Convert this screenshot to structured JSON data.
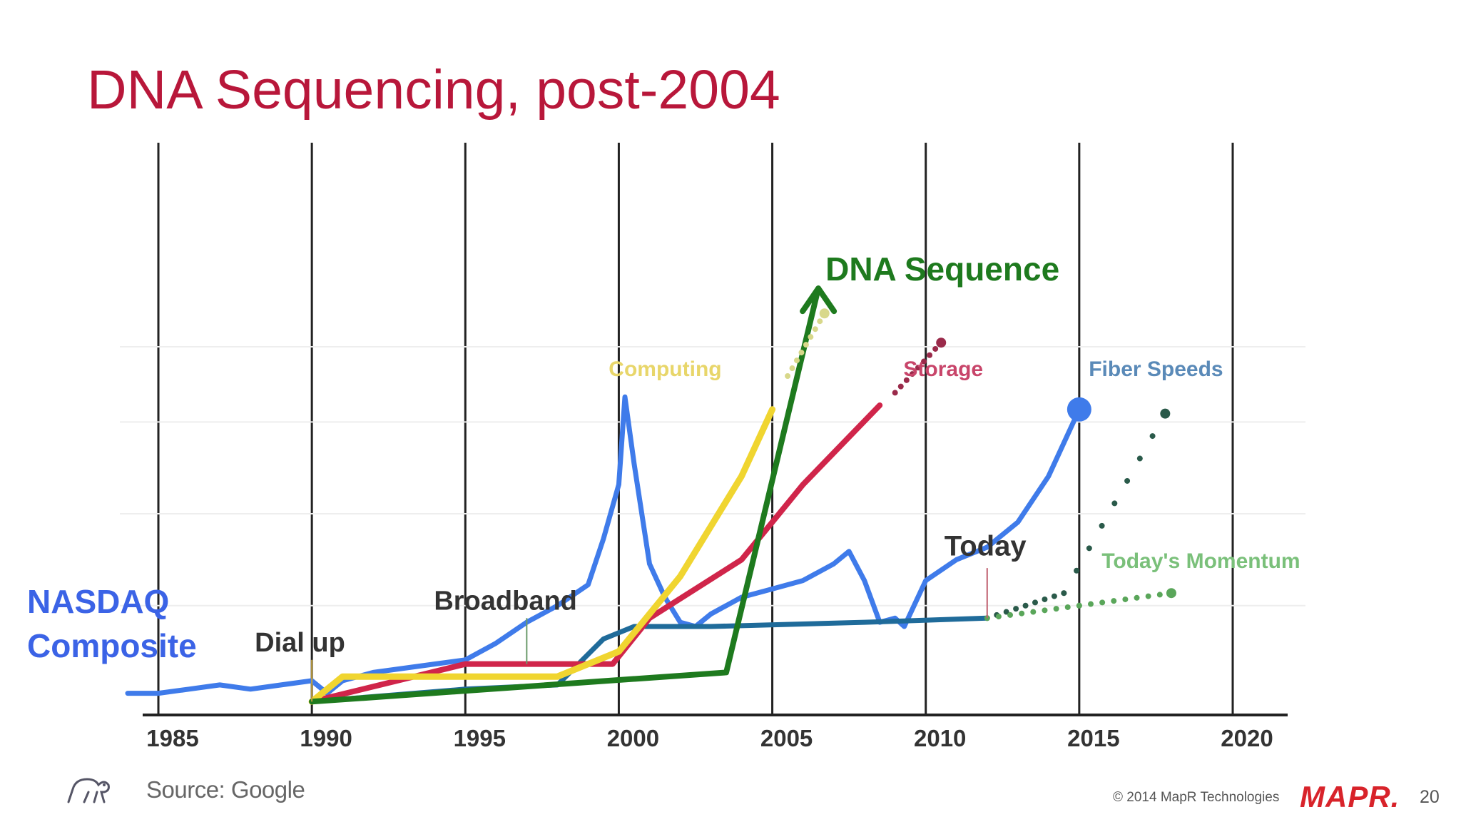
{
  "slide": {
    "title": "DNA Sequencing, post-2004",
    "nasdaq_label_line1": "NASDAQ",
    "nasdaq_label_line2": "Composite",
    "source": "Source: Google",
    "copyright": "© 2014 MapR Technologies",
    "logo_text": "MAPR.",
    "page_number": "20"
  },
  "chart_data": {
    "type": "line",
    "title": "DNA Sequencing, post-2004",
    "xlabel": "",
    "ylabel": "",
    "xlim": [
      1984,
      2021
    ],
    "ylim": [
      0,
      100
    ],
    "grid": "vertical lines at each tick",
    "x_ticks": [
      1985,
      1990,
      1995,
      2000,
      2005,
      2010,
      2015,
      2020
    ],
    "annotations": [
      {
        "text": "Dial up",
        "x": 1990,
        "y": 14
      },
      {
        "text": "Broadband",
        "x": 1997,
        "y": 24
      },
      {
        "text": "Today",
        "x": 2012,
        "y": 37
      },
      {
        "text": "DNA Sequence",
        "x": 2006.5,
        "y": 101
      },
      {
        "text": "Computing",
        "x": 2004.3,
        "y": 80
      },
      {
        "text": "Storage",
        "x": 2011.5,
        "y": 80
      },
      {
        "text": "Fiber Speeds",
        "x": 2017.5,
        "y": 80
      },
      {
        "text": "Today's Momentum",
        "x": 2018.5,
        "y": 34
      }
    ],
    "series": [
      {
        "name": "NASDAQ Composite",
        "color": "#3f7bea",
        "x": [
          1984,
          1985,
          1986,
          1987,
          1988,
          1989,
          1990,
          1990.5,
          1991,
          1992,
          1993,
          1994,
          1995,
          1996,
          1997,
          1998,
          1999,
          1999.5,
          2000,
          2000.2,
          2000.5,
          2001,
          2001.5,
          2002,
          2002.5,
          2003,
          2004,
          2005,
          2006,
          2007,
          2007.5,
          2008,
          2008.5,
          2009,
          2009.3,
          2010,
          2011,
          2012,
          2013,
          2014,
          2015
        ],
        "y": [
          4,
          4,
          5,
          6,
          5,
          6,
          7,
          4,
          7,
          9,
          10,
          11,
          12,
          16,
          21,
          25,
          30,
          41,
          54,
          75,
          59,
          35,
          27,
          21,
          20,
          23,
          27,
          29,
          31,
          35,
          38,
          31,
          21,
          22,
          20,
          31,
          36,
          39,
          45,
          56,
          72
        ]
      },
      {
        "name": "Computing",
        "color": "#f0d530",
        "x": [
          1990,
          1991,
          1995,
          1998,
          2000,
          2002,
          2004,
          2005
        ],
        "y": [
          2,
          8,
          8,
          8,
          14,
          32,
          56,
          72
        ]
      },
      {
        "name": "Storage",
        "color": "#d0254a",
        "x": [
          1990,
          1995,
          1998,
          1999.8,
          2001,
          2004,
          2006,
          2008.5
        ],
        "y": [
          2,
          11,
          11,
          11,
          22,
          36,
          54,
          73
        ]
      },
      {
        "name": "Fiber Speeds",
        "color": "#1f6b9a",
        "x": [
          1990,
          1995,
          1998,
          1999.5,
          2000.5,
          2003,
          2008,
          2012
        ],
        "y": [
          2,
          5,
          6,
          17,
          20,
          20,
          21,
          22
        ]
      },
      {
        "name": "DNA Sequence",
        "color": "#1e7a1e",
        "x": [
          1990,
          2003.5,
          2006.5
        ],
        "y": [
          2,
          9,
          101
        ]
      }
    ],
    "projections": [
      {
        "name": "Computing",
        "x": [
          2005.5,
          2006.7
        ],
        "y": [
          80,
          95
        ]
      },
      {
        "name": "Storage",
        "x": [
          2009,
          2010.5
        ],
        "y": [
          76,
          88
        ]
      },
      {
        "name": "Fiber Speeds",
        "x": [
          2012,
          2014.5,
          2017.8
        ],
        "y": [
          22,
          28,
          71
        ]
      },
      {
        "name": "Today's Momentum",
        "x": [
          2012,
          2015,
          2018
        ],
        "y": [
          22,
          25,
          28
        ]
      }
    ]
  }
}
